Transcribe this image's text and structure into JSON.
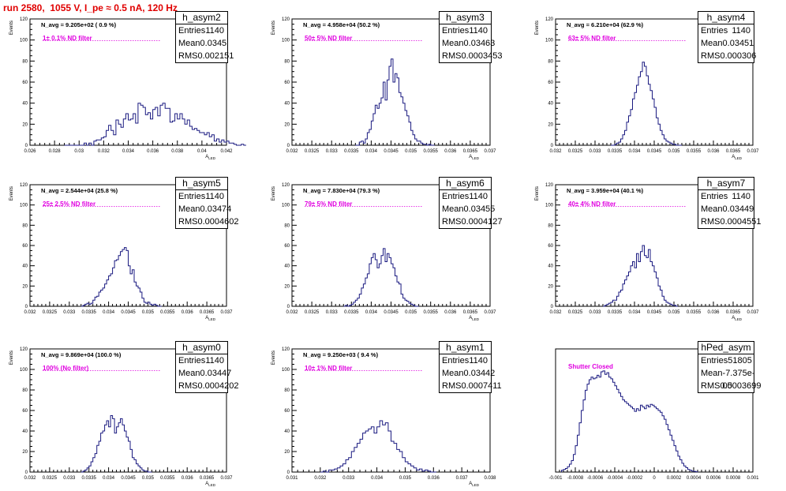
{
  "page": {
    "title": "run 2580,  1055 V, I_pe ≈ 0.5 nA, 120 Hz"
  },
  "colors": {
    "histogram": "#1a1a80",
    "filter_label": "#e000e0",
    "title": "#e00000"
  },
  "chart_data": [
    {
      "type": "bar",
      "name": "h_asym2",
      "navg_label": "N_avg = 9.205e+02 ( 0.9 %)",
      "filter_label": "1± 0.1% ND filter",
      "stats": [
        {
          "k": "Entries",
          "v": "1140"
        },
        {
          "k": "Mean",
          "v": "0.0345"
        },
        {
          "k": "RMS",
          "v": "0.002151"
        }
      ],
      "xlabel": "A_LED",
      "ylabel": "Events",
      "xlim": [
        0.026,
        0.042
      ],
      "ylim": [
        0,
        120
      ],
      "xticks": [
        "0.026",
        "0.028",
        "0.03",
        "0.032",
        "0.034",
        "0.036",
        "0.038",
        "0.04",
        "0.042"
      ],
      "yticks": [
        "0",
        "20",
        "40",
        "60",
        "80",
        "100",
        "120"
      ],
      "bin_width": 0.0002,
      "bin_start": 0.0288,
      "values": [
        0,
        0,
        0,
        0,
        0,
        0,
        0,
        0,
        2,
        0,
        2,
        0,
        4,
        5,
        5,
        7,
        8,
        14,
        19,
        14,
        10,
        24,
        20,
        17,
        25,
        30,
        24,
        25,
        30,
        21,
        40,
        38,
        36,
        29,
        31,
        25,
        34,
        36,
        28,
        38,
        40,
        35,
        35,
        22,
        23,
        30,
        25,
        30,
        25,
        20,
        24,
        18,
        15,
        16,
        14,
        12,
        12,
        10,
        12,
        8,
        10,
        4,
        6,
        3,
        5,
        3,
        4,
        2,
        2,
        1,
        0,
        0,
        1,
        0
      ]
    },
    {
      "type": "bar",
      "name": "h_asym3",
      "navg_label": "N_avg = 4.958e+04 (50.2 %)",
      "filter_label": "50± 5% ND filter",
      "stats": [
        {
          "k": "Entries",
          "v": "1140"
        },
        {
          "k": "Mean",
          "v": "0.03463"
        },
        {
          "k": "RMS",
          "v": "0.0003453"
        }
      ],
      "xlabel": "A_LED",
      "ylabel": "Events",
      "xlim": [
        0.032,
        0.037
      ],
      "ylim": [
        0,
        120
      ],
      "xticks": [
        "0.032",
        "0.0325",
        "0.033",
        "0.0335",
        "0.034",
        "0.0345",
        "0.035",
        "0.0355",
        "0.036",
        "0.0365",
        "0.037"
      ],
      "yticks": [
        "0",
        "20",
        "40",
        "60",
        "80",
        "100",
        "120"
      ],
      "bin_width": 5e-05,
      "bin_start": 0.0336,
      "values": [
        0,
        0,
        3,
        4,
        2,
        6,
        12,
        15,
        23,
        30,
        38,
        35,
        40,
        45,
        60,
        43,
        62,
        75,
        82,
        60,
        68,
        64,
        50,
        46,
        40,
        33,
        28,
        22,
        14,
        10,
        6,
        4,
        4,
        2,
        1,
        1,
        0,
        1,
        0,
        0
      ]
    },
    {
      "type": "bar",
      "name": "h_asym4",
      "navg_label": "N_avg = 6.210e+04 (62.9 %)",
      "filter_label": "63± 5% ND filter",
      "stats": [
        {
          "k": "Entries",
          "v": "1140"
        },
        {
          "k": "Mean",
          "v": "0.03451"
        },
        {
          "k": "RMS",
          "v": "0.000306"
        }
      ],
      "xlabel": "A_LED",
      "ylabel": "Events",
      "xlim": [
        0.032,
        0.037
      ],
      "ylim": [
        0,
        120
      ],
      "xticks": [
        "0.032",
        "0.0325",
        "0.033",
        "0.0335",
        "0.034",
        "0.0345",
        "0.035",
        "0.0355",
        "0.036",
        "0.0365",
        "0.037"
      ],
      "yticks": [
        "0",
        "20",
        "40",
        "60",
        "80",
        "100",
        "120"
      ],
      "bin_width": 5e-05,
      "bin_start": 0.0334,
      "values": [
        0,
        0,
        1,
        2,
        3,
        6,
        10,
        14,
        22,
        28,
        34,
        44,
        50,
        57,
        65,
        70,
        79,
        75,
        66,
        58,
        52,
        44,
        36,
        26,
        20,
        14,
        10,
        6,
        4,
        3,
        2,
        1,
        1,
        0,
        0,
        0
      ]
    },
    {
      "type": "bar",
      "name": "h_asym5",
      "navg_label": "N_avg = 2.544e+04 (25.8 %)",
      "filter_label": "25± 2.5% ND filter",
      "stats": [
        {
          "k": "Entries",
          "v": "1140"
        },
        {
          "k": "Mean",
          "v": "0.03474"
        },
        {
          "k": "RMS",
          "v": "0.0004602"
        }
      ],
      "xlabel": "A_LED",
      "ylabel": "Events",
      "xlim": [
        0.032,
        0.037
      ],
      "ylim": [
        0,
        120
      ],
      "xticks": [
        "0.032",
        "0.0325",
        "0.033",
        "0.0335",
        "0.034",
        "0.0345",
        "0.035",
        "0.0355",
        "0.036",
        "0.0365",
        "0.037"
      ],
      "yticks": [
        "0",
        "20",
        "40",
        "60",
        "80",
        "100",
        "120"
      ],
      "bin_width": 5e-05,
      "bin_start": 0.0333,
      "values": [
        0,
        1,
        2,
        3,
        2,
        3,
        6,
        9,
        10,
        14,
        16,
        18,
        22,
        26,
        30,
        32,
        38,
        45,
        46,
        50,
        54,
        56,
        58,
        55,
        40,
        32,
        36,
        24,
        20,
        18,
        14,
        8,
        4,
        3,
        4,
        2,
        1,
        2,
        1,
        0,
        0
      ]
    },
    {
      "type": "bar",
      "name": "h_asym6",
      "navg_label": "N_avg = 7.830e+04 (79.3 %)",
      "filter_label": "79± 5% ND filter",
      "stats": [
        {
          "k": "Entries",
          "v": "1140"
        },
        {
          "k": "Mean",
          "v": "0.03455"
        },
        {
          "k": "RMS",
          "v": "0.0004127"
        }
      ],
      "xlabel": "A_LED",
      "ylabel": "Events",
      "xlim": [
        0.032,
        0.037
      ],
      "ylim": [
        0,
        120
      ],
      "xticks": [
        "0.032",
        "0.0325",
        "0.033",
        "0.0335",
        "0.034",
        "0.0345",
        "0.035",
        "0.0355",
        "0.036",
        "0.0365",
        "0.037"
      ],
      "yticks": [
        "0",
        "20",
        "40",
        "60",
        "80",
        "100",
        "120"
      ],
      "bin_width": 5e-05,
      "bin_start": 0.0333,
      "values": [
        0,
        1,
        0,
        1,
        2,
        4,
        6,
        8,
        12,
        18,
        22,
        28,
        32,
        42,
        48,
        52,
        46,
        38,
        42,
        50,
        57,
        44,
        52,
        48,
        42,
        38,
        30,
        24,
        22,
        12,
        8,
        6,
        5,
        3,
        2,
        1,
        0,
        0
      ]
    },
    {
      "type": "bar",
      "name": "h_asym7",
      "navg_label": "N_avg = 3.959e+04 (40.1 %)",
      "filter_label": "40± 4% ND filter",
      "stats": [
        {
          "k": "Entries",
          "v": "1140"
        },
        {
          "k": "Mean",
          "v": "0.03449"
        },
        {
          "k": "RMS",
          "v": "0.0004551"
        }
      ],
      "xlabel": "A_LED",
      "ylabel": "Events",
      "xlim": [
        0.032,
        0.037
      ],
      "ylim": [
        0,
        120
      ],
      "xticks": [
        "0.032",
        "0.0325",
        "0.033",
        "0.0335",
        "0.034",
        "0.0345",
        "0.035",
        "0.0355",
        "0.036",
        "0.0365",
        "0.037"
      ],
      "yticks": [
        "0",
        "20",
        "40",
        "60",
        "80",
        "100",
        "120"
      ],
      "bin_width": 5e-05,
      "bin_start": 0.0332,
      "values": [
        0,
        1,
        2,
        3,
        4,
        6,
        6,
        10,
        14,
        16,
        22,
        26,
        30,
        34,
        40,
        44,
        38,
        52,
        44,
        54,
        60,
        50,
        48,
        56,
        44,
        40,
        34,
        28,
        20,
        16,
        10,
        6,
        4,
        3,
        2,
        1,
        1,
        0
      ]
    },
    {
      "type": "bar",
      "name": "h_asym0",
      "navg_label": "N_avg = 9.869e+04 (100.0 %)",
      "filter_label": "100% (No filter)",
      "stats": [
        {
          "k": "Entries",
          "v": "1140"
        },
        {
          "k": "Mean",
          "v": "0.03447"
        },
        {
          "k": "RMS",
          "v": "0.0004202"
        }
      ],
      "xlabel": "A_LED",
      "ylabel": "Events",
      "xlim": [
        0.032,
        0.037
      ],
      "ylim": [
        0,
        120
      ],
      "xticks": [
        "0.032",
        "0.0325",
        "0.033",
        "0.0335",
        "0.034",
        "0.0345",
        "0.035",
        "0.0355",
        "0.036",
        "0.0365",
        "0.037"
      ],
      "yticks": [
        "0",
        "20",
        "40",
        "60",
        "80",
        "100",
        "120"
      ],
      "bin_width": 5e-05,
      "bin_start": 0.0333,
      "values": [
        0,
        1,
        2,
        4,
        6,
        10,
        14,
        18,
        26,
        30,
        38,
        40,
        46,
        50,
        44,
        55,
        52,
        38,
        44,
        48,
        52,
        46,
        40,
        34,
        30,
        22,
        14,
        12,
        8,
        6,
        4,
        2,
        1,
        1,
        0,
        0
      ]
    },
    {
      "type": "bar",
      "name": "h_asym1",
      "navg_label": "N_avg = 9.250e+03 ( 9.4 %)",
      "filter_label": "10± 1% ND filter",
      "stats": [
        {
          "k": "Entries",
          "v": "1140"
        },
        {
          "k": "Mean",
          "v": "0.03442"
        },
        {
          "k": "RMS",
          "v": "0.0007411"
        }
      ],
      "xlabel": "A_LED",
      "ylabel": "Events",
      "xlim": [
        0.031,
        0.038
      ],
      "ylim": [
        0,
        120
      ],
      "xticks": [
        "0.031",
        "0.032",
        "0.033",
        "0.034",
        "0.035",
        "0.036",
        "0.037",
        "0.038"
      ],
      "yticks": [
        "0",
        "20",
        "40",
        "60",
        "80",
        "100",
        "120"
      ],
      "bin_width": 0.0001,
      "bin_start": 0.032,
      "values": [
        0,
        1,
        0,
        2,
        2,
        3,
        4,
        6,
        8,
        12,
        14,
        20,
        24,
        28,
        32,
        38,
        40,
        42,
        44,
        38,
        44,
        50,
        46,
        48,
        40,
        30,
        28,
        22,
        20,
        14,
        10,
        8,
        6,
        4,
        2,
        3,
        1,
        2,
        1,
        0,
        0
      ]
    },
    {
      "type": "bar",
      "name": "hPed_asym",
      "navg_label": "",
      "filter_label": "Shutter Closed",
      "stats": [
        {
          "k": "Entries",
          "v": "51805"
        },
        {
          "k": "Mean",
          "v": "-7.375e-05"
        },
        {
          "k": "RMS",
          "v": "0.0003699"
        }
      ],
      "xlabel": "",
      "ylabel": "",
      "xlim": [
        -0.001,
        0.001
      ],
      "ylim": [
        0,
        1400
      ],
      "xticks": [
        "-0.001",
        "-0.0008",
        "-0.0006",
        "-0.0004",
        "-0.0002",
        "0",
        "0.0002",
        "0.0004",
        "0.0006",
        "0.0008",
        "0.001"
      ],
      "yticks": [],
      "bin_width": 2e-05,
      "bin_start": -0.00094,
      "values": [
        20,
        30,
        40,
        60,
        90,
        130,
        200,
        300,
        420,
        560,
        700,
        820,
        930,
        1000,
        1050,
        1080,
        1060,
        1070,
        1100,
        1080,
        1140,
        1150,
        1110,
        1130,
        1080,
        1060,
        1020,
        980,
        940,
        900,
        860,
        820,
        800,
        780,
        760,
        740,
        720,
        690,
        720,
        700,
        760,
        740,
        720,
        760,
        740,
        770,
        760,
        740,
        720,
        700,
        680,
        640,
        600,
        540,
        480,
        420,
        360,
        300,
        240,
        180,
        140,
        100,
        70,
        50,
        30,
        20,
        12,
        8,
        4
      ]
    }
  ]
}
